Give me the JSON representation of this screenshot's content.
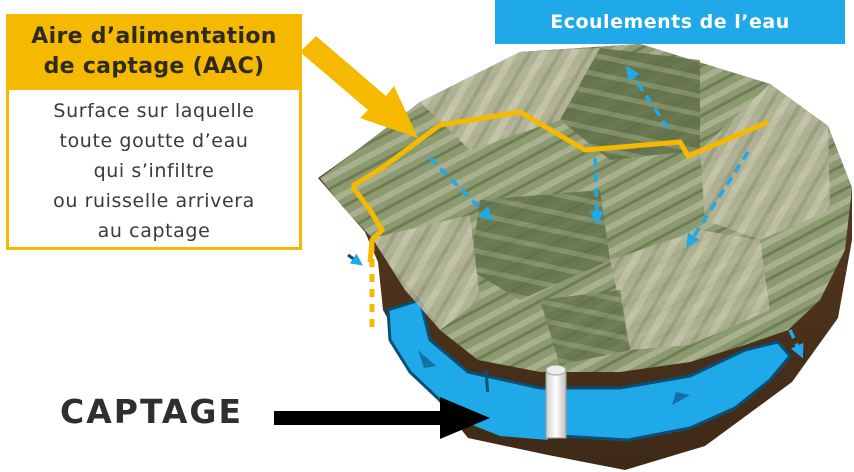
{
  "aac": {
    "title_line1": "Aire d’alimentation",
    "title_line2": "de captage (AAC)",
    "definition": [
      "Surface sur laquelle",
      "toute goutte d’eau",
      "qui s’infiltre",
      "ou ruisselle arrivera",
      "au captage"
    ]
  },
  "flow_label": "Ecoulements de l’eau",
  "captage_label": "CAPTAGE",
  "colors": {
    "aac_yellow": "#f5b900",
    "water_blue": "#1fa9e8",
    "soil_brown": "#6b4a2a",
    "field_green": "#7d8a63"
  }
}
